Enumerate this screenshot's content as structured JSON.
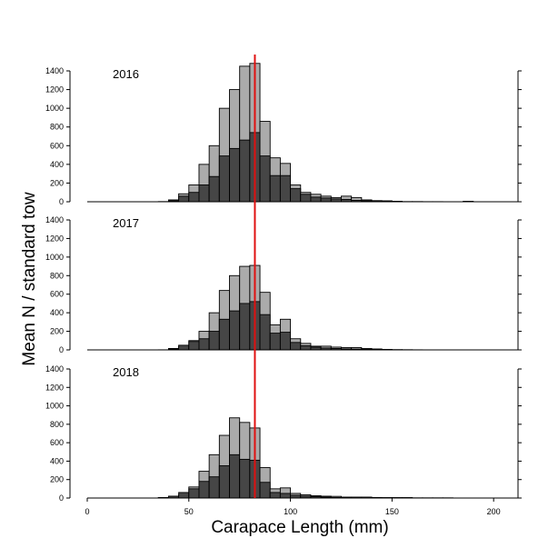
{
  "chart_data": {
    "type": "bar",
    "layout": "stacked histogram, three panels sharing x axis",
    "xlabel": "Carapace Length (mm)",
    "ylabel": "Mean N / standard tow",
    "xlim": [
      0,
      212
    ],
    "ylim": [
      0,
      1400
    ],
    "bin_width": 5,
    "x_ticks": [
      0,
      50,
      100,
      150,
      200
    ],
    "y_ticks": [
      0,
      200,
      400,
      600,
      800,
      1000,
      1200,
      1400
    ],
    "reference_line": {
      "x": 82.5,
      "color": "#e01010"
    },
    "colors": {
      "dark": "#464646",
      "light": "#ababab",
      "edge": "#000000"
    },
    "bins": [
      0,
      5,
      10,
      15,
      20,
      25,
      30,
      35,
      40,
      45,
      50,
      55,
      60,
      65,
      70,
      75,
      80,
      85,
      90,
      95,
      100,
      105,
      110,
      115,
      120,
      125,
      130,
      135,
      140,
      145,
      150,
      155,
      160,
      165,
      170,
      175,
      180,
      185,
      190,
      195,
      200
    ],
    "panels": [
      {
        "label": "2016",
        "dark": [
          0,
          0,
          0,
          0,
          0,
          0,
          0,
          0,
          10,
          60,
          100,
          180,
          270,
          490,
          570,
          660,
          740,
          490,
          280,
          280,
          140,
          80,
          50,
          40,
          30,
          25,
          15,
          10,
          10,
          5,
          5,
          0,
          0,
          0,
          0,
          0,
          0,
          0,
          0,
          0,
          0
        ],
        "total": [
          0,
          0,
          0,
          0,
          0,
          0,
          0,
          2,
          20,
          85,
          180,
          400,
          600,
          1000,
          1200,
          1450,
          1480,
          860,
          470,
          410,
          180,
          100,
          80,
          60,
          45,
          60,
          45,
          20,
          12,
          10,
          5,
          2,
          2,
          1,
          1,
          0,
          0,
          5,
          0,
          0,
          0
        ]
      },
      {
        "label": "2017",
        "dark": [
          0,
          0,
          0,
          0,
          0,
          0,
          0,
          0,
          10,
          50,
          90,
          120,
          200,
          330,
          420,
          500,
          520,
          380,
          180,
          190,
          80,
          45,
          30,
          20,
          15,
          10,
          8,
          5,
          4,
          3,
          2,
          0,
          0,
          0,
          0,
          0,
          0,
          0,
          0,
          0,
          0
        ],
        "total": [
          0,
          0,
          0,
          0,
          0,
          0,
          0,
          1,
          15,
          40,
          100,
          200,
          400,
          640,
          800,
          900,
          910,
          620,
          270,
          330,
          120,
          70,
          40,
          40,
          30,
          25,
          25,
          15,
          10,
          5,
          2,
          2,
          1,
          0,
          0,
          0,
          0,
          0,
          0,
          0,
          0
        ]
      },
      {
        "label": "2018",
        "dark": [
          0,
          0,
          0,
          0,
          0,
          0,
          0,
          5,
          20,
          60,
          100,
          180,
          230,
          350,
          470,
          420,
          410,
          170,
          60,
          50,
          30,
          20,
          15,
          10,
          5,
          4,
          2,
          1,
          1,
          0,
          0,
          0,
          0,
          0,
          0,
          0,
          0,
          0,
          0,
          0,
          0
        ],
        "total": [
          0,
          0,
          0,
          0,
          0,
          0,
          0,
          5,
          20,
          35,
          120,
          290,
          470,
          680,
          870,
          820,
          760,
          330,
          100,
          110,
          50,
          35,
          25,
          20,
          18,
          10,
          10,
          10,
          6,
          5,
          5,
          5,
          2,
          2,
          2,
          2,
          0,
          0,
          0,
          0,
          0
        ]
      }
    ]
  }
}
